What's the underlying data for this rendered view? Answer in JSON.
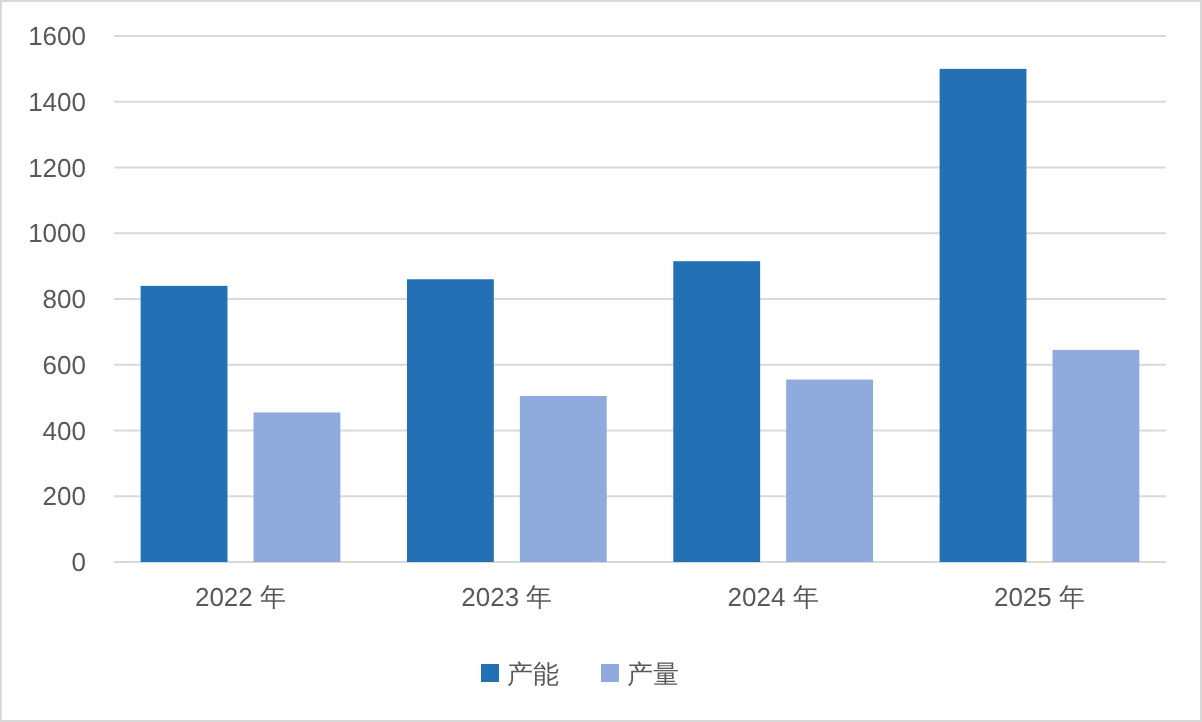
{
  "chart_data": {
    "type": "bar",
    "categories": [
      "2022 年",
      "2023 年",
      "2024 年",
      "2025 年"
    ],
    "series": [
      {
        "name": "产能",
        "color": "#2370b5",
        "values": [
          840,
          860,
          915,
          1500
        ]
      },
      {
        "name": "产量",
        "color": "#8faadc",
        "values": [
          455,
          505,
          555,
          645
        ]
      }
    ],
    "ylim": [
      0,
      1600
    ],
    "yticks": [
      0,
      200,
      400,
      600,
      800,
      1000,
      1200,
      1400,
      1600
    ],
    "grid": "y",
    "legend": "bottom"
  }
}
